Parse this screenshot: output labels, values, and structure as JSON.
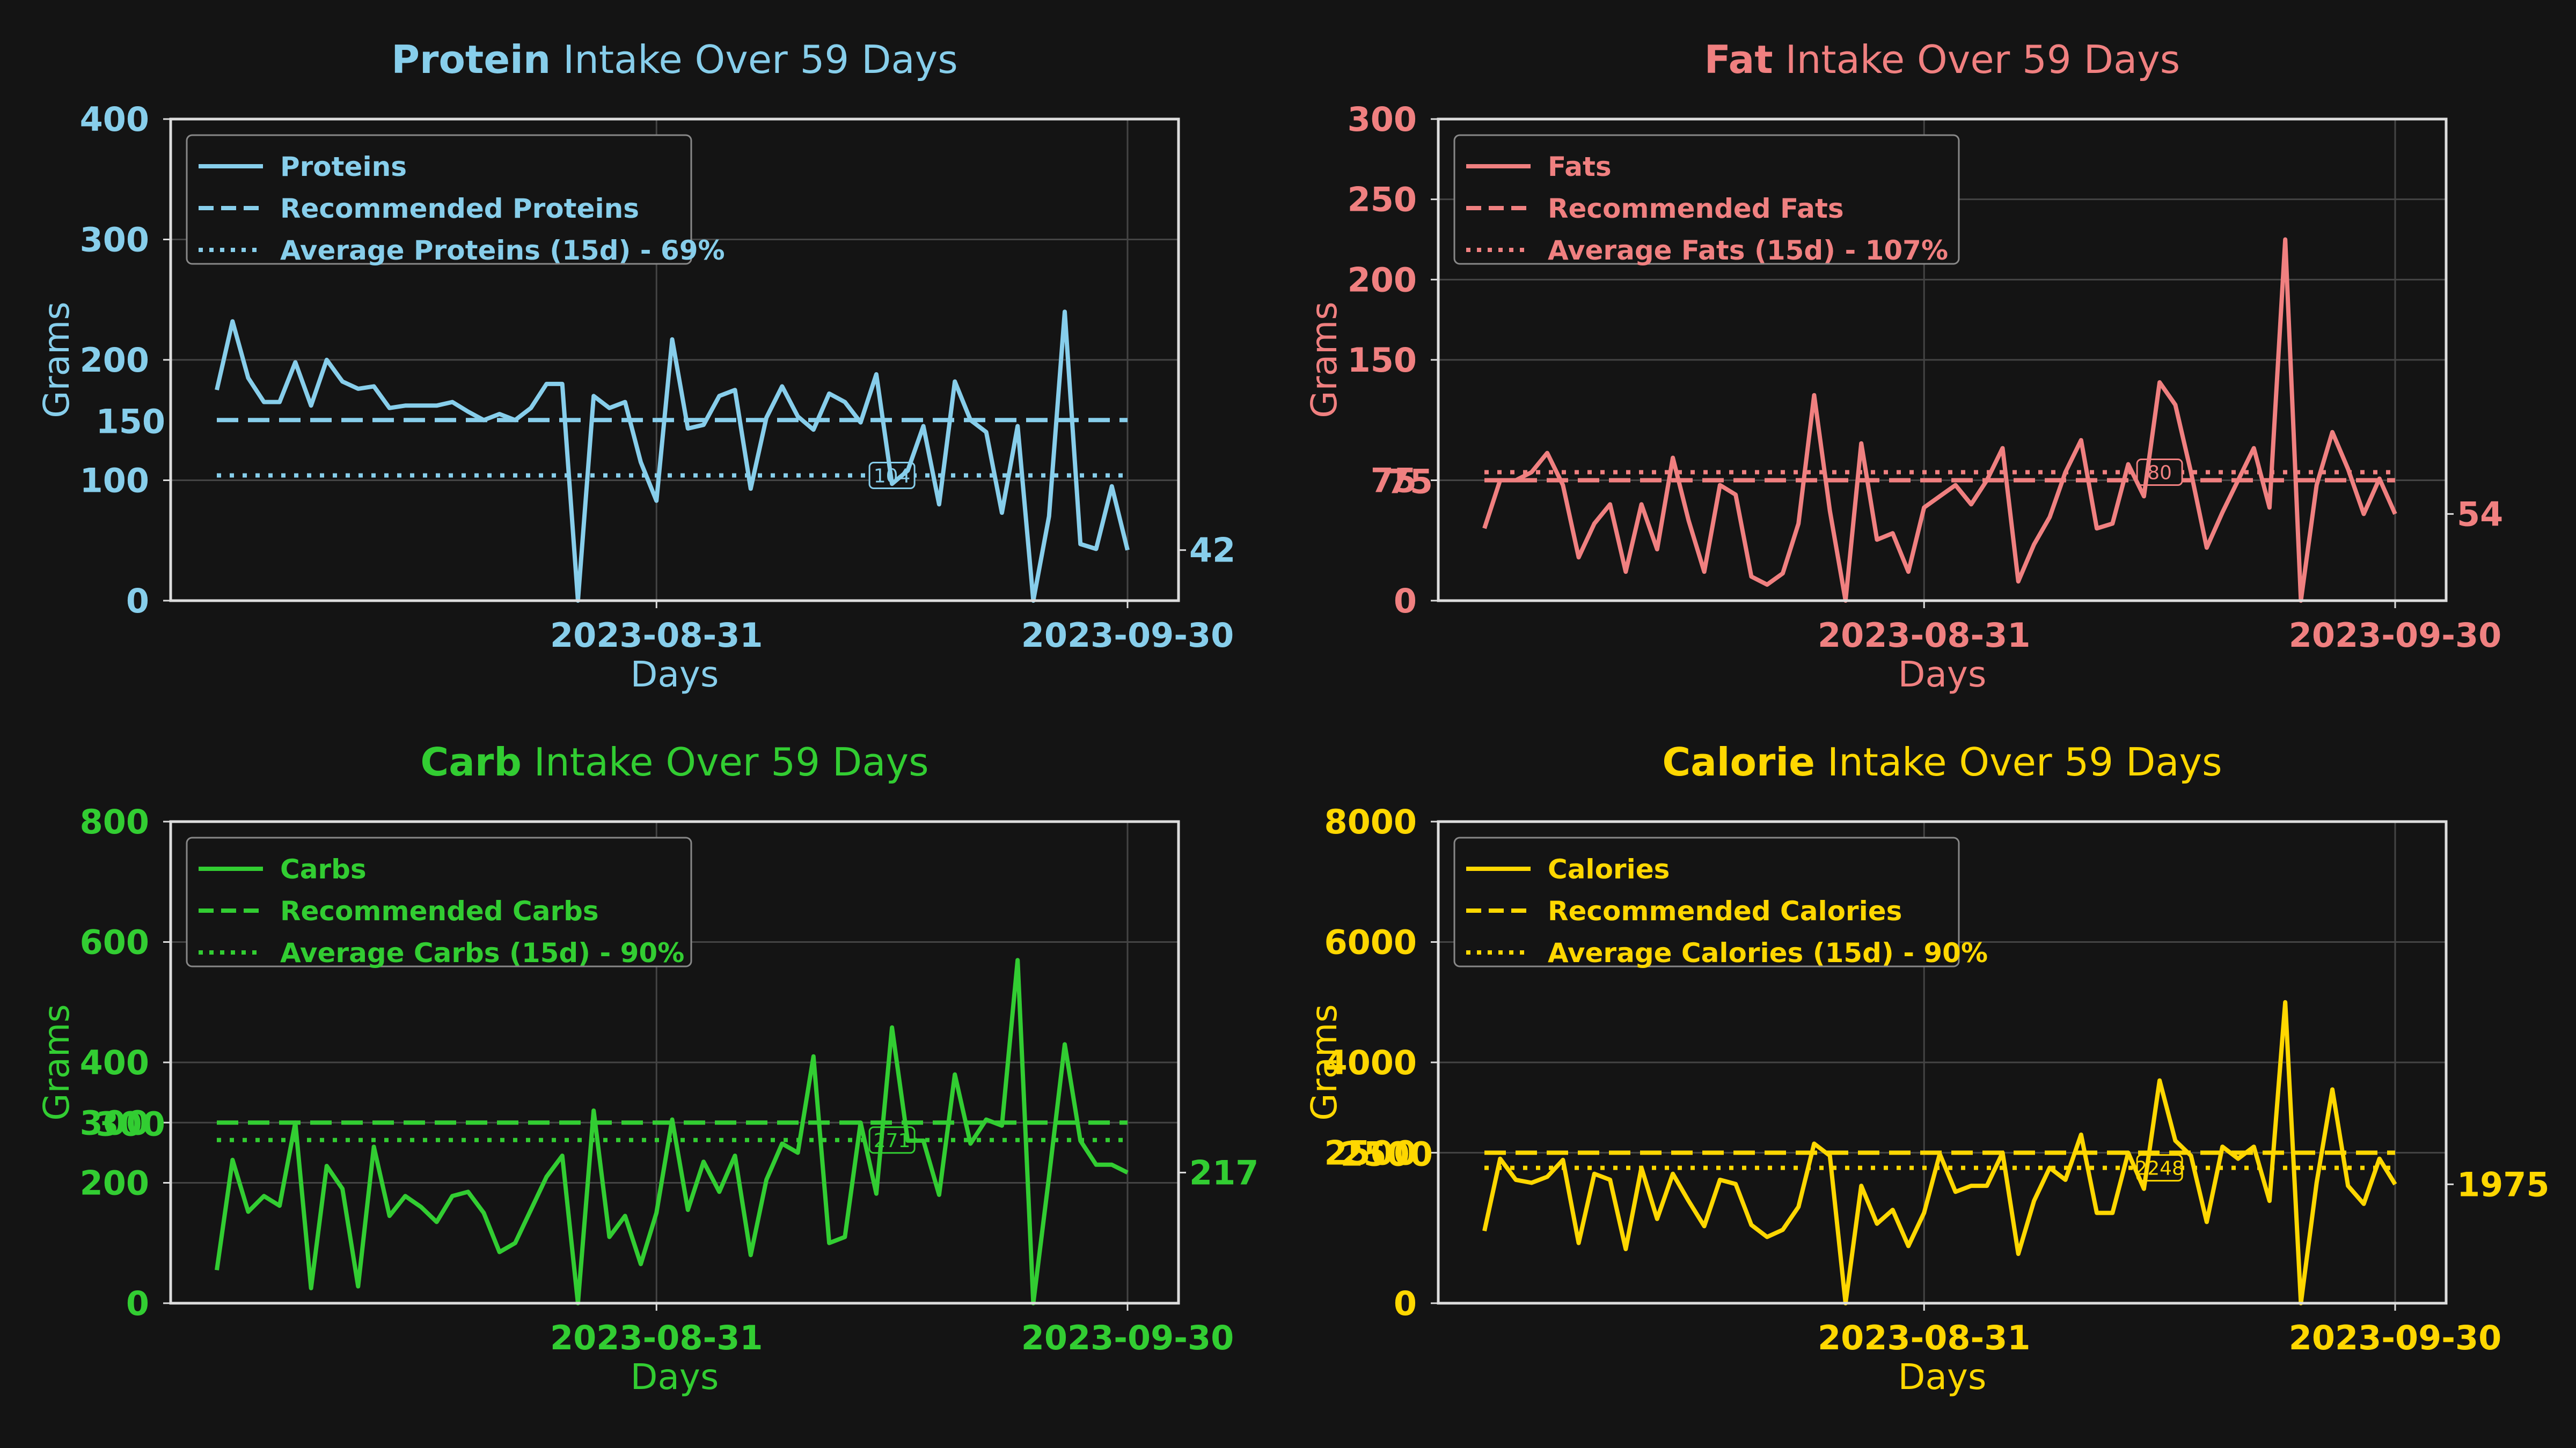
{
  "chart_data": [
    {
      "type": "line",
      "title_bold": "Protein",
      "title_rest": " Intake Over 59 Days",
      "color": "#87CEEB",
      "ylabel": "Grams",
      "xlabel": "Days",
      "ylim": [
        0,
        400
      ],
      "yticks": [
        "0",
        "100",
        "200",
        "300",
        "400"
      ],
      "xtick_labels": [
        "2023-08-31",
        "2023-09-30"
      ],
      "recommended_label": "150",
      "last_label": "42",
      "avg_label": "104",
      "legend": [
        "Proteins",
        "Recommended Proteins",
        "Average Proteins (15d) - 69%"
      ],
      "recommended": 150,
      "average": 104,
      "avg_start_day": 0,
      "values": [
        175,
        232,
        185,
        165,
        165,
        198,
        162,
        200,
        182,
        176,
        178,
        160,
        162,
        162,
        162,
        165,
        157,
        150,
        155,
        150,
        160,
        180,
        180,
        0,
        170,
        160,
        165,
        115,
        83,
        217,
        143,
        146,
        170,
        175,
        93,
        152,
        178,
        153,
        142,
        172,
        165,
        148,
        188,
        97,
        108,
        145,
        80,
        182,
        150,
        140,
        73,
        145,
        0,
        70,
        240,
        47,
        43,
        95,
        42
      ],
      "last_day": 58
    },
    {
      "type": "line",
      "title_bold": "Fat",
      "title_rest": " Intake Over 59 Days",
      "color": "#F08080",
      "ylabel": "Grams",
      "xlabel": "Days",
      "ylim": [
        0,
        300
      ],
      "yticks": [
        "0",
        "75",
        "150",
        "200",
        "250",
        "300"
      ],
      "ytick_values": [
        0,
        75,
        150,
        200,
        250,
        300
      ],
      "xtick_labels": [
        "2023-08-31",
        "2023-09-30"
      ],
      "recommended_label": "75",
      "last_label": "54",
      "avg_label": "80",
      "legend": [
        "Fats",
        "Recommended Fats",
        "Average Fats (15d) - 107%"
      ],
      "recommended": 75,
      "average": 80,
      "avg_start_day": 0,
      "values": [
        45,
        75,
        75,
        80,
        92,
        72,
        27,
        48,
        60,
        18,
        60,
        32,
        89,
        50,
        18,
        72,
        66,
        15,
        10,
        17,
        48,
        128,
        56,
        0,
        98,
        38,
        42,
        18,
        58,
        65,
        72,
        60,
        75,
        95,
        12,
        35,
        52,
        80,
        100,
        45,
        48,
        85,
        65,
        136,
        122,
        80,
        33,
        55,
        75,
        95,
        58,
        225,
        0,
        72,
        105,
        82,
        54,
        76,
        54
      ],
      "last_day": 58
    },
    {
      "type": "line",
      "title_bold": "Carb",
      "title_rest": " Intake Over 59 Days",
      "color": "#32CD32",
      "ylabel": "Grams",
      "xlabel": "Days",
      "ylim": [
        0,
        800
      ],
      "yticks": [
        "0",
        "200",
        "300",
        "400",
        "600",
        "800"
      ],
      "ytick_values": [
        0,
        200,
        300,
        400,
        600,
        800
      ],
      "xtick_labels": [
        "2023-08-31",
        "2023-09-30"
      ],
      "recommended_label": "300",
      "last_label": "217",
      "avg_label": "271",
      "legend": [
        "Carbs",
        "Recommended Carbs",
        "Average Carbs (15d) - 90%"
      ],
      "recommended": 300,
      "average": 271,
      "avg_start_day": 0,
      "values": [
        55,
        238,
        152,
        178,
        162,
        300,
        25,
        228,
        190,
        28,
        260,
        145,
        178,
        160,
        135,
        178,
        185,
        150,
        85,
        100,
        155,
        210,
        245,
        0,
        320,
        110,
        145,
        65,
        150,
        305,
        155,
        235,
        185,
        245,
        80,
        205,
        265,
        250,
        410,
        100,
        110,
        300,
        182,
        458,
        270,
        270,
        180,
        380,
        265,
        305,
        295,
        570,
        0,
        210,
        430,
        270,
        230,
        230,
        217
      ],
      "last_day": 58
    },
    {
      "type": "line",
      "title_bold": "Calorie",
      "title_rest": " Intake Over 59 Days",
      "color": "#FFD700",
      "ylabel": "Grams",
      "xlabel": "Days",
      "ylim": [
        0,
        8000
      ],
      "yticks": [
        "0",
        "2500",
        "4000",
        "6000",
        "8000"
      ],
      "ytick_values": [
        0,
        2500,
        4000,
        6000,
        8000
      ],
      "xtick_labels": [
        "2023-08-31",
        "2023-09-30"
      ],
      "recommended_label": "2500",
      "last_label": "1975",
      "avg_label": "2248",
      "legend": [
        "Calories",
        "Recommended Calories",
        "Average Calories (15d) - 90%"
      ],
      "recommended": 2500,
      "average": 2248,
      "avg_start_day": 0,
      "values": [
        1200,
        2400,
        2050,
        2000,
        2100,
        2380,
        1000,
        2150,
        2050,
        900,
        2250,
        1400,
        2150,
        1700,
        1280,
        2050,
        1980,
        1300,
        1100,
        1220,
        1600,
        2650,
        2450,
        0,
        1950,
        1320,
        1550,
        950,
        1500,
        2480,
        1850,
        1950,
        1950,
        2500,
        820,
        1700,
        2250,
        2050,
        2800,
        1500,
        1500,
        2500,
        1900,
        3700,
        2700,
        2450,
        1350,
        2600,
        2400,
        2600,
        1700,
        5000,
        0,
        2000,
        3550,
        1950,
        1650,
        2400,
        1975
      ],
      "last_day": 58
    }
  ]
}
